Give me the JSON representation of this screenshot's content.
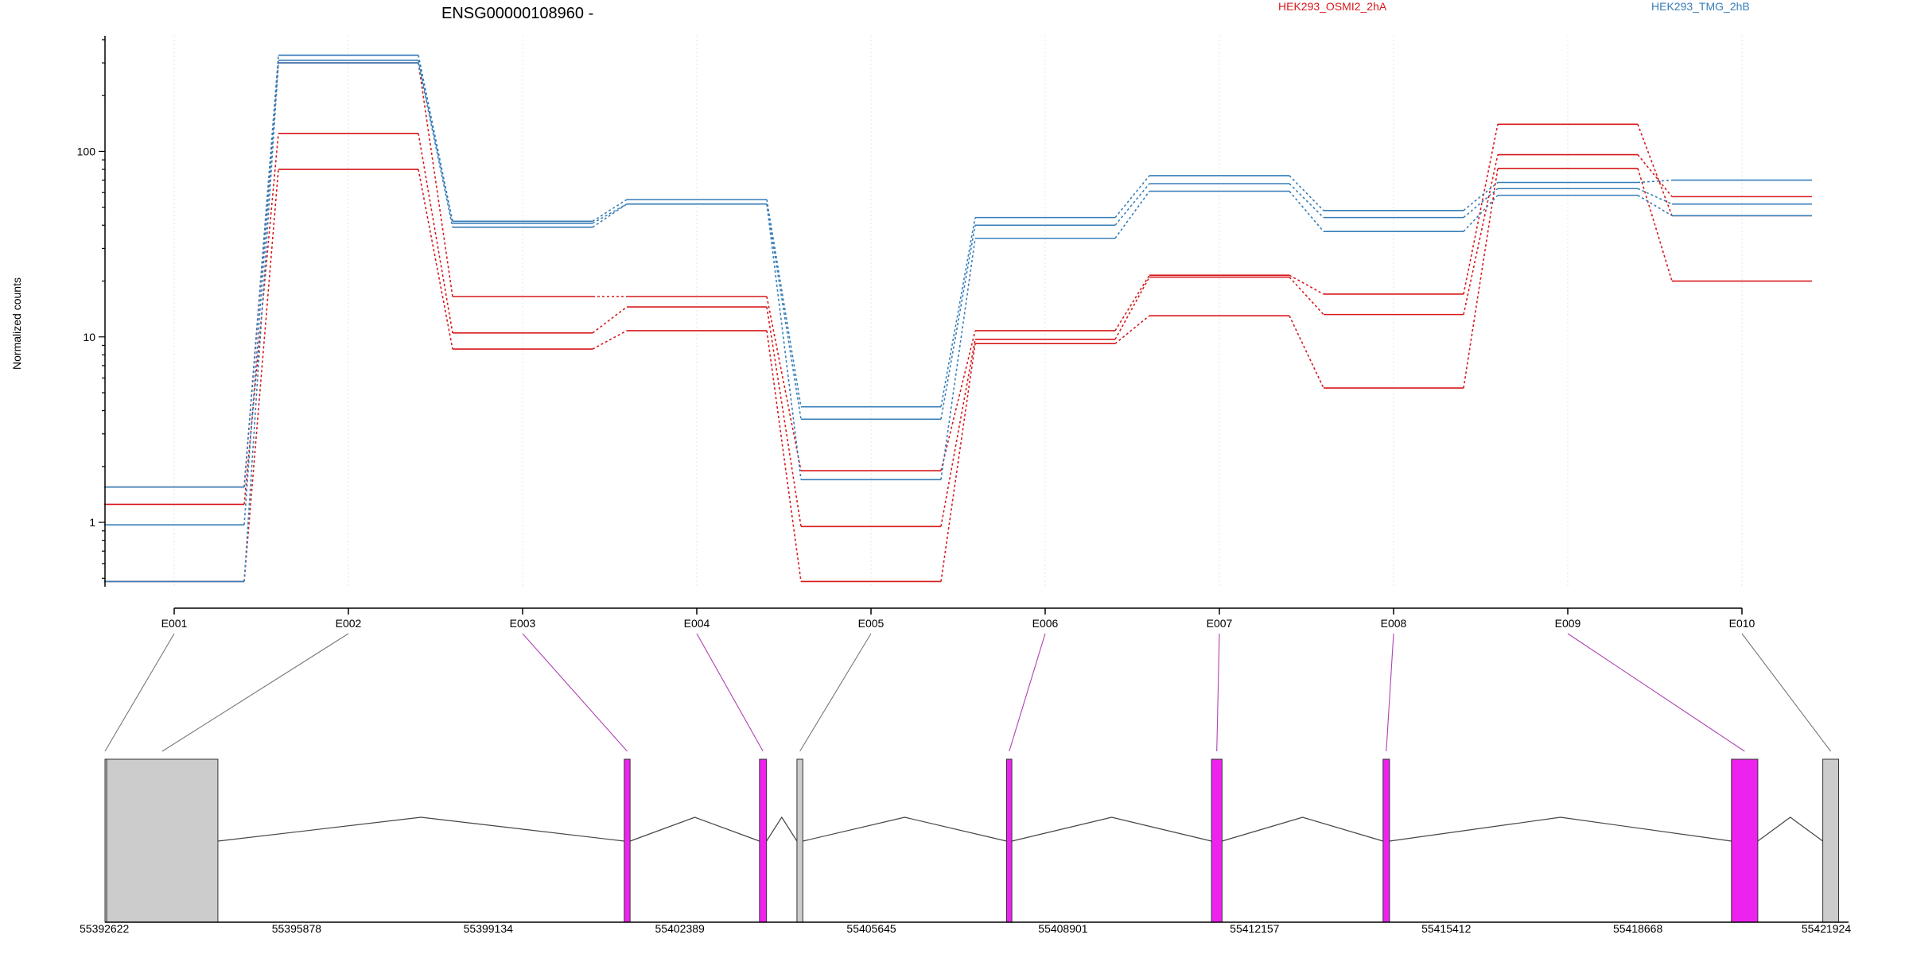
{
  "chart_data": {
    "type": "line",
    "title": "ENSG00000108960 -",
    "ylabel": "Normalized counts",
    "xlabel": "",
    "yscale": "log",
    "ylim": [
      0.45,
      420
    ],
    "grid": true,
    "legend_placement": "top",
    "y_ticks": [
      {
        "value": 1,
        "label": "1"
      },
      {
        "value": 10,
        "label": "10"
      },
      {
        "value": 100,
        "label": "100"
      }
    ],
    "categories": [
      "E001",
      "E002",
      "E003",
      "E004",
      "E005",
      "E006",
      "E007",
      "E008",
      "E009",
      "E010"
    ],
    "colors": {
      "HEK293_OSMI2_2hA": "#d7191c",
      "HEK293_TMG_2hB": "#377eb8",
      "exon_dexseq": "#ee22ee",
      "exon_plain": "#cccccc"
    },
    "legend": [
      {
        "name": "HEK293_OSMI2_2hA",
        "color": "#d7191c"
      },
      {
        "name": "HEK293_TMG_2hB",
        "color": "#377eb8"
      }
    ],
    "series": [
      {
        "group": "HEK293_OSMI2_2hA",
        "color": "#d7191c",
        "values": [
          1.55,
          300,
          16.5,
          16.5,
          1.9,
          10.8,
          21.5,
          17,
          140,
          45
        ]
      },
      {
        "group": "HEK293_OSMI2_2hA",
        "color": "#d7191c",
        "values": [
          1.25,
          125,
          10.5,
          14.5,
          0.95,
          9.7,
          21,
          13.2,
          96,
          57
        ]
      },
      {
        "group": "HEK293_OSMI2_2hA",
        "color": "#d7191c",
        "values": [
          0.48,
          80,
          8.6,
          10.8,
          0.48,
          9.2,
          13,
          5.3,
          81,
          20
        ]
      },
      {
        "group": "HEK293_TMG_2hB",
        "color": "#377eb8",
        "values": [
          1.55,
          330,
          42,
          55,
          4.2,
          44,
          74,
          48,
          68,
          70
        ]
      },
      {
        "group": "HEK293_TMG_2hB",
        "color": "#377eb8",
        "values": [
          0.97,
          310,
          41,
          52,
          3.6,
          40,
          67,
          44,
          63,
          52
        ]
      },
      {
        "group": "HEK293_TMG_2hB",
        "color": "#377eb8",
        "values": [
          0.48,
          300,
          39,
          52,
          1.7,
          34,
          61,
          37,
          58,
          45
        ]
      }
    ],
    "gene_model": {
      "coord_range": [
        55392622,
        55422400
      ],
      "coord_labels": [
        "55392622",
        "55395878",
        "55399134",
        "55402389",
        "55405645",
        "55408901",
        "55412157",
        "55415412",
        "55418668",
        "55421924"
      ],
      "exons": [
        {
          "id": "E001",
          "start": 55392622,
          "end": 55392650,
          "dexseq": false
        },
        {
          "id": "E002",
          "start": 55392650,
          "end": 55394550,
          "dexseq": false
        },
        {
          "id": "E003",
          "start": 55401490,
          "end": 55401590,
          "dexseq": true
        },
        {
          "id": "E004",
          "start": 55403800,
          "end": 55403920,
          "dexseq": true
        },
        {
          "id": "E005",
          "start": 55404440,
          "end": 55404540,
          "dexseq": false
        },
        {
          "id": "E006",
          "start": 55408020,
          "end": 55408110,
          "dexseq": true
        },
        {
          "id": "E007",
          "start": 55411520,
          "end": 55411700,
          "dexseq": true
        },
        {
          "id": "E008",
          "start": 55414450,
          "end": 55414560,
          "dexseq": true
        },
        {
          "id": "E009",
          "start": 55420400,
          "end": 55420850,
          "dexseq": true
        },
        {
          "id": "E010",
          "start": 55421960,
          "end": 55422230,
          "dexseq": false
        }
      ]
    }
  }
}
